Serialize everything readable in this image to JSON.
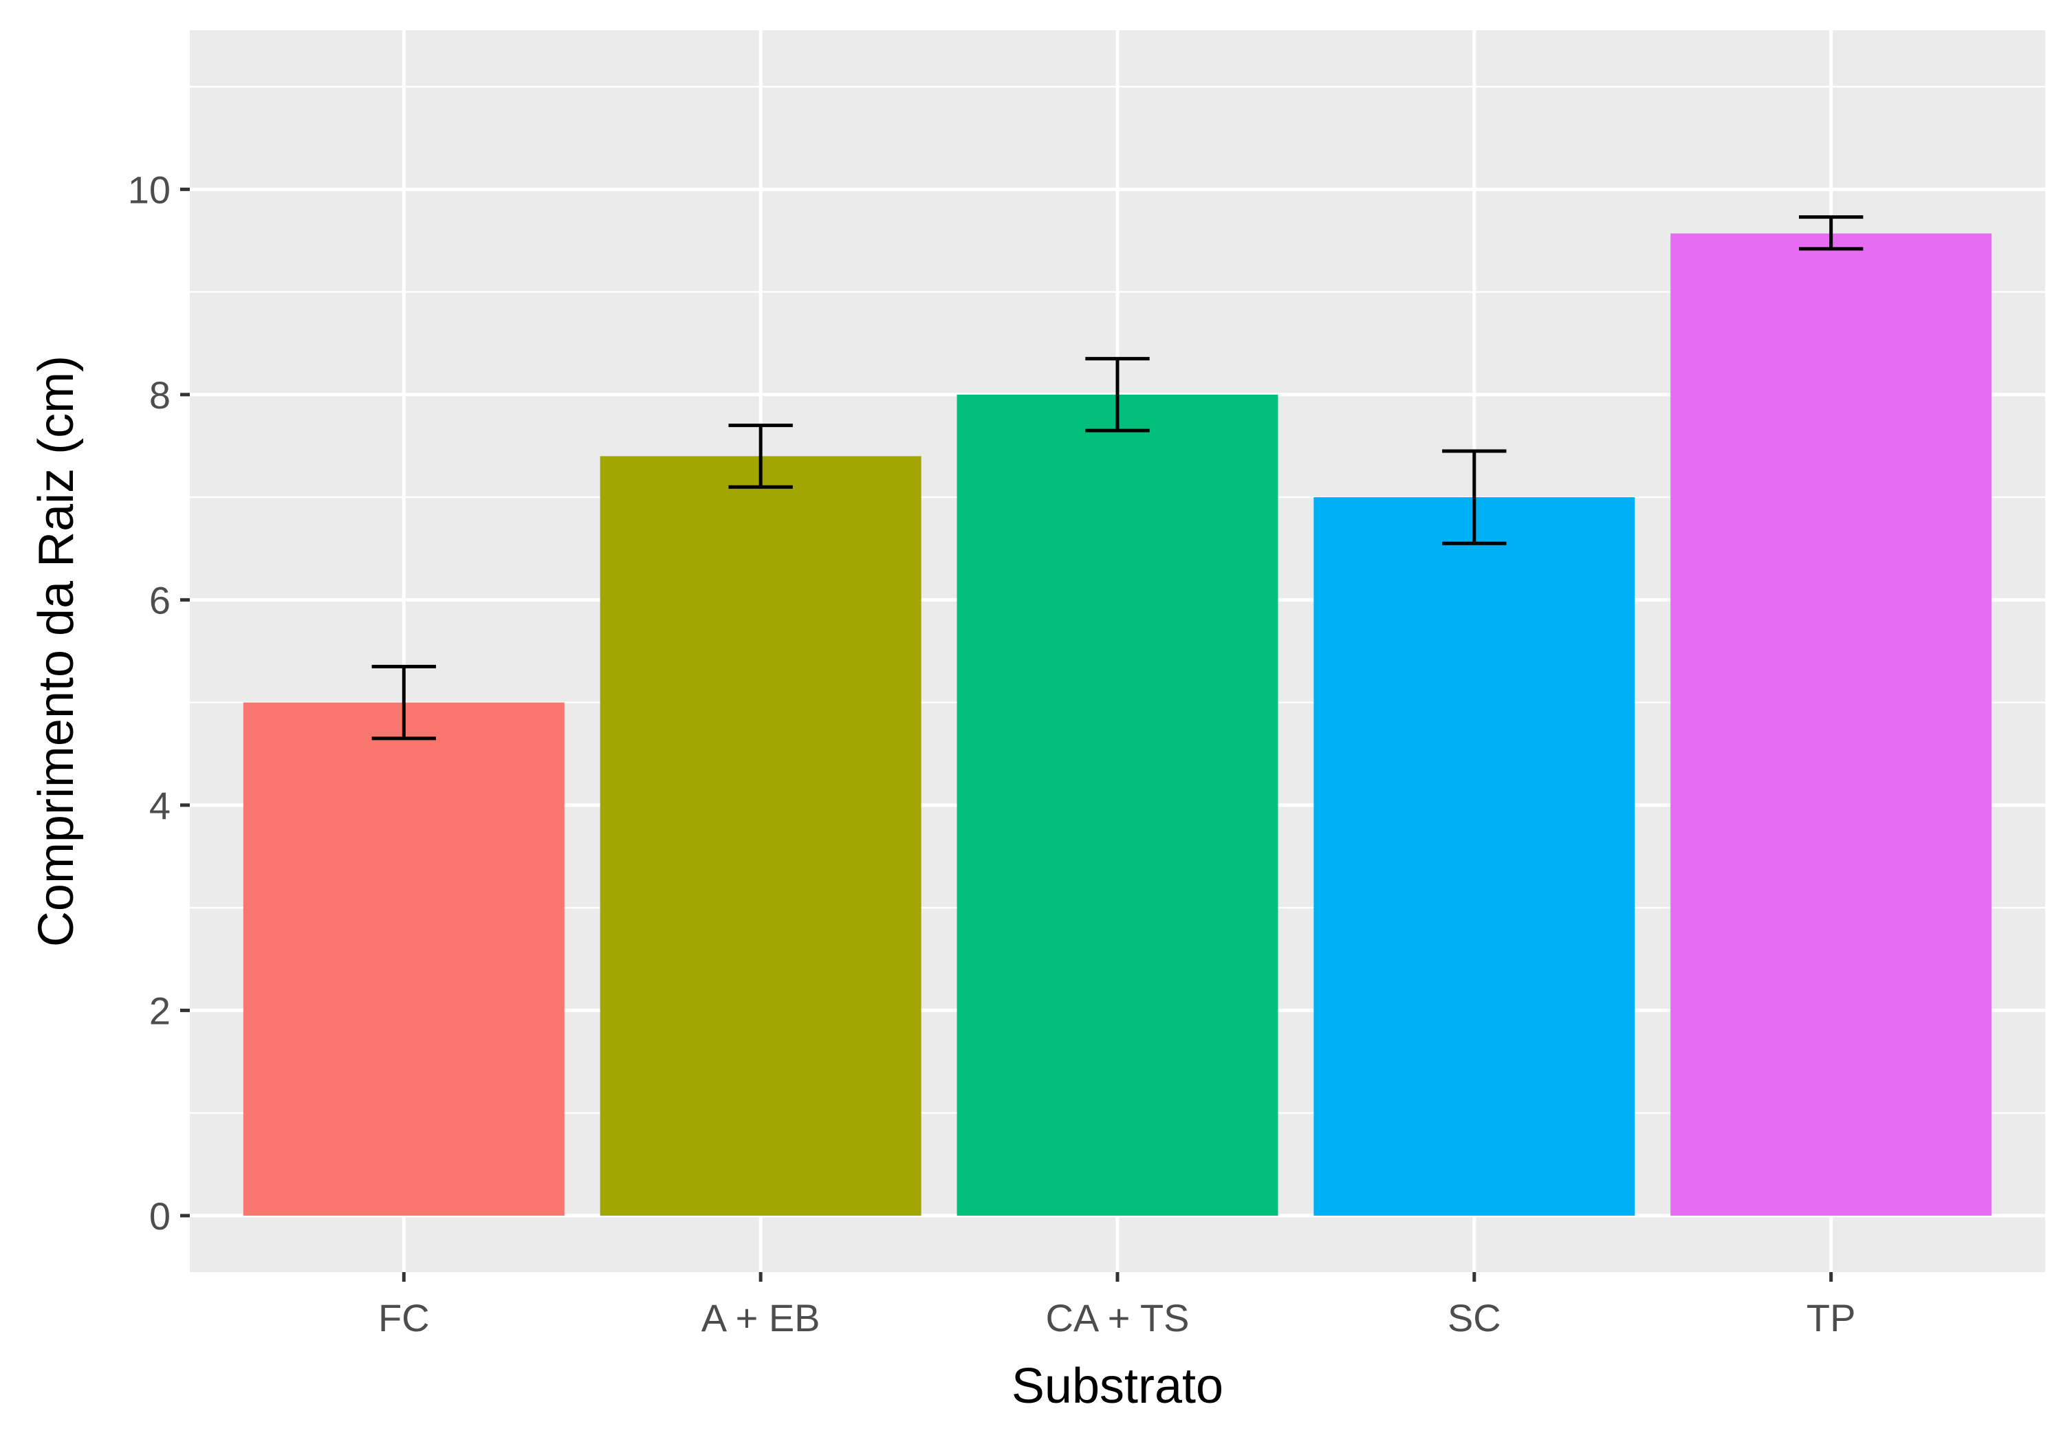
{
  "chart_data": {
    "type": "bar",
    "title": "",
    "xlabel": "Substrato",
    "ylabel": "Comprimento da Raiz (cm)",
    "categories": [
      "FC",
      "A + EB",
      "CA + TS",
      "SC",
      "TP"
    ],
    "values": [
      5.0,
      7.4,
      8.0,
      7.0,
      9.57
    ],
    "error_low": [
      4.65,
      7.1,
      7.65,
      6.55,
      9.42
    ],
    "error_high": [
      5.35,
      7.7,
      8.35,
      7.45,
      9.73
    ],
    "colors": [
      "#F8766D",
      "#A3A500",
      "#00BF7D",
      "#00B0F6",
      "#E76BF3"
    ],
    "ylim": [
      -0.55,
      11.55
    ],
    "yticks": [
      0,
      2,
      4,
      6,
      8,
      10
    ],
    "ytick_labels": [
      "0",
      "2",
      "4",
      "6",
      "8",
      "10"
    ],
    "grid": true,
    "legend": "none",
    "panel_background": "#EBEBEB",
    "grid_color": "#FFFFFF"
  }
}
